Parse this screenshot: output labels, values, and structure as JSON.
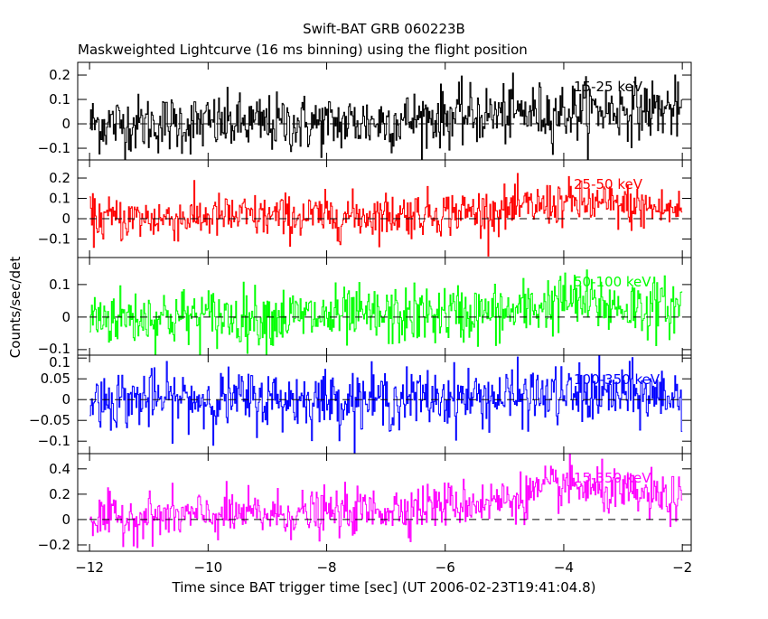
{
  "chart_data": {
    "type": "line",
    "title": "Swift-BAT GRB 060223B",
    "subtitle": "Maskweighted Lightcurve (16 ms binning) using the flight position",
    "xlabel": "Time since BAT trigger time [sec] (UT 2006-02-23T19:41:04.8)",
    "ylabel": "Counts/sec/det",
    "xlim": [
      -12.2,
      -1.85
    ],
    "x_ticks": [
      -12,
      -10,
      -8,
      -6,
      -4,
      -2
    ],
    "x_tick_labels": [
      "−12",
      "−10",
      "−8",
      "−6",
      "−4",
      "−2"
    ],
    "bin_seconds": 0.016,
    "trend_x": [
      -12,
      -11,
      -10,
      -9,
      -8,
      -7,
      -6,
      -5,
      -4,
      -3,
      -2
    ],
    "panels": [
      {
        "name": "15-25 keV",
        "color": "#000000",
        "ylim": [
          -0.148,
          0.252
        ],
        "yticks": [
          -0.1,
          0,
          0.1,
          0.2
        ],
        "ytick_labels": [
          "−0.1",
          "0",
          "0.1",
          "0.2"
        ],
        "trend": [
          0,
          0,
          0,
          0,
          0,
          0.01,
          0.03,
          0.04,
          0.05,
          0.06,
          0.06
        ],
        "noise": 0.06
      },
      {
        "name": "25-50 keV",
        "color": "#ff0000",
        "ylim": [
          -0.191,
          0.289
        ],
        "yticks": [
          -0.1,
          0,
          0.1,
          0.2
        ],
        "ytick_labels": [
          "−0.1",
          "0",
          "0.1",
          "0.2"
        ],
        "trend": [
          0,
          0,
          0.01,
          0.01,
          0.01,
          0.02,
          0.03,
          0.04,
          0.08,
          0.06,
          0.04
        ],
        "noise": 0.055
      },
      {
        "name": "50-100 keV",
        "color": "#00ff00",
        "ylim": [
          -0.117,
          0.183
        ],
        "yticks": [
          -0.1,
          0,
          0.1
        ],
        "ytick_labels": [
          "−0.1",
          "0",
          "0.1"
        ],
        "trend": [
          0,
          0,
          0,
          0,
          0,
          0,
          0.01,
          0.01,
          0.05,
          0.03,
          0.03
        ],
        "noise": 0.045
      },
      {
        "name": "100-350 keV",
        "color": "#0000ff",
        "ylim": [
          -0.13,
          0.107
        ],
        "yticks": [
          -0.1,
          -0.05,
          0,
          0.05,
          0.1
        ],
        "ytick_labels": [
          "−0.1",
          "−0.05",
          "0",
          "0.05",
          "0.1"
        ],
        "trend": [
          0,
          0,
          0,
          0,
          0,
          0,
          0.005,
          0.005,
          0.01,
          0.01,
          0.01
        ],
        "noise": 0.035
      },
      {
        "name": "15-350 keV",
        "color": "#ff00ff",
        "ylim": [
          -0.25,
          0.52
        ],
        "yticks": [
          -0.2,
          0,
          0.2,
          0.4
        ],
        "ytick_labels": [
          "−0.2",
          "0",
          "0.2",
          "0.4"
        ],
        "trend": [
          0,
          0.02,
          0.03,
          0.04,
          0.05,
          0.08,
          0.12,
          0.15,
          0.27,
          0.2,
          0.15
        ],
        "noise": 0.09
      }
    ]
  }
}
